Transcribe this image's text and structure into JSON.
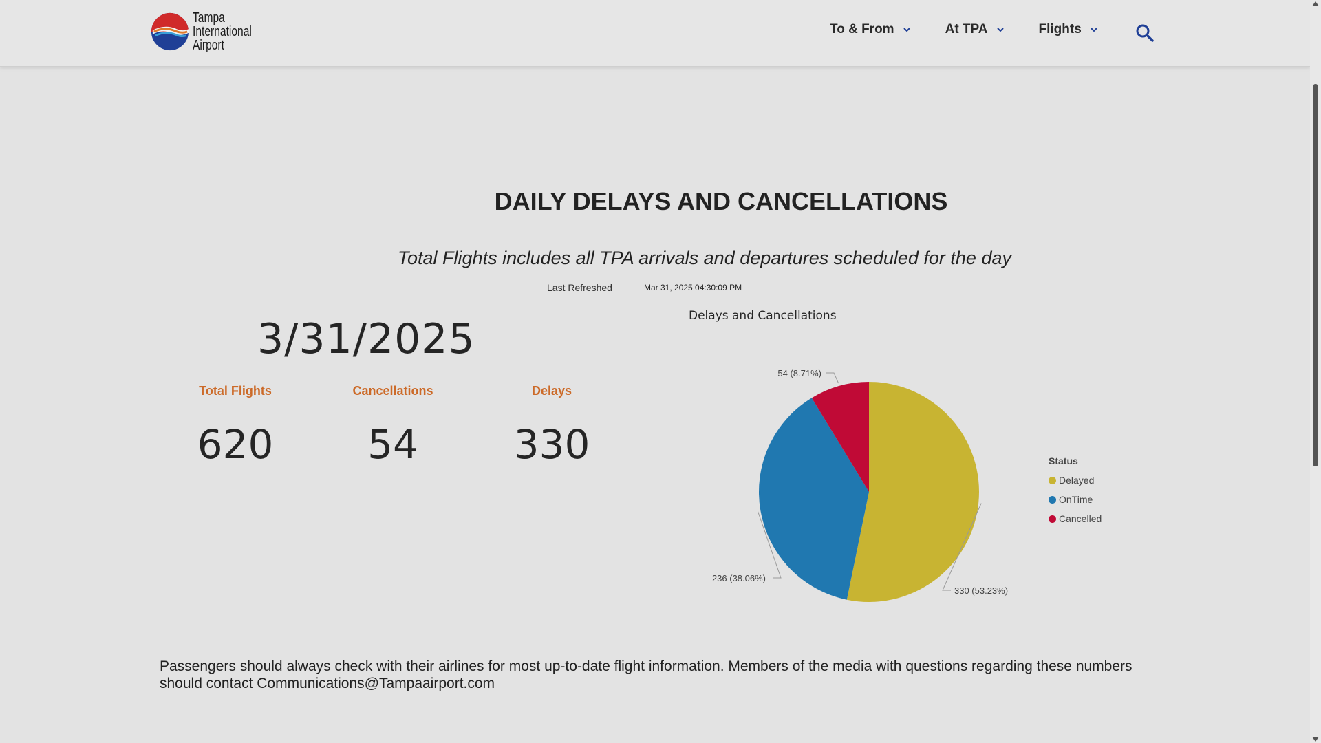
{
  "header": {
    "logo_lines": [
      "Tampa",
      "International",
      "Airport"
    ],
    "nav": [
      {
        "label": "To & From"
      },
      {
        "label": "At TPA"
      },
      {
        "label": "Flights"
      }
    ],
    "search_icon": "search-icon"
  },
  "main": {
    "title": "DAILY DELAYS AND CANCELLATIONS",
    "subtitle": "Total Flights includes all TPA arrivals and departures scheduled for the day",
    "last_refreshed_label": "Last Refreshed",
    "last_refreshed_value": "Mar 31, 2025 04:30:09 PM",
    "date": "3/31/2025",
    "stats": [
      {
        "label": "Total Flights",
        "value": "620"
      },
      {
        "label": "Cancellations",
        "value": "54"
      },
      {
        "label": "Delays",
        "value": "330"
      }
    ]
  },
  "chart_data": {
    "type": "pie",
    "title": "Delays and Cancellations",
    "legend_title": "Status",
    "slices": [
      {
        "name": "Delayed",
        "value": 330,
        "label": "330 (53.23%)",
        "color": "#c8b432"
      },
      {
        "name": "OnTime",
        "value": 236,
        "label": "236 (38.06%)",
        "color": "#2078b0"
      },
      {
        "name": "Cancelled",
        "value": 54,
        "label": "54 (8.71%)",
        "color": "#c00a36"
      }
    ]
  },
  "footer": {
    "note": "Passengers should always check with their airlines for most up-to-date flight information. Members of the media with questions regarding these numbers should contact Communications@Tampaairport.com"
  }
}
